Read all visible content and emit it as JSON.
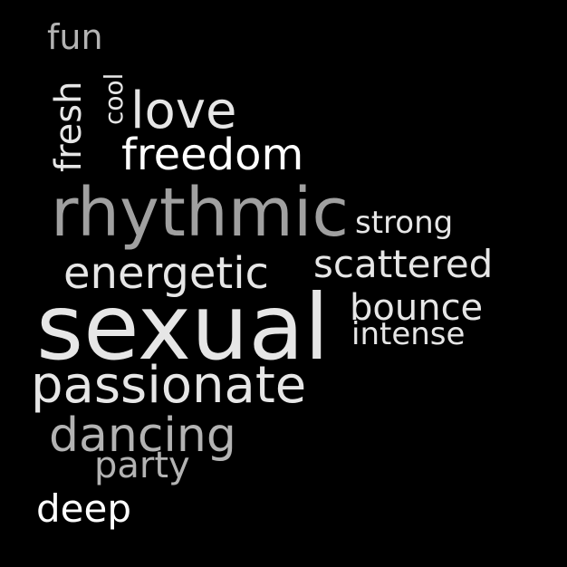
{
  "words": {
    "fun": "fun",
    "fresh": "fresh",
    "cool": "cool",
    "love": "love",
    "freedom": "freedom",
    "rhythmic": "rhythmic",
    "strong": "strong",
    "energetic": "energetic",
    "scattered": "scattered",
    "sexual": "sexual",
    "bounce": "bounce",
    "intense": "intense",
    "passionate": "passionate",
    "dancing": "dancing",
    "party": "party",
    "deep": "deep"
  },
  "colors": {
    "background": "#000000",
    "light": "#e6e6e6",
    "white": "#ffffff",
    "gray": "#b3b3b3",
    "dim": "#a0a0a0"
  }
}
